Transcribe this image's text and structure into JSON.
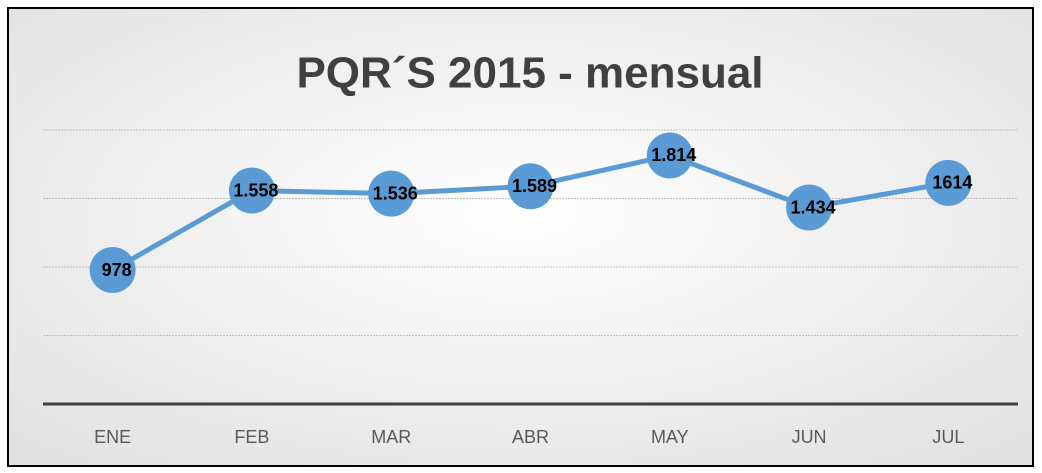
{
  "chart_data": {
    "type": "line",
    "title": "PQR´S  2015 - mensual",
    "categories": [
      "ENE",
      "FEB",
      "MAR",
      "ABR",
      "MAY",
      "JUN",
      "JUL"
    ],
    "series": [
      {
        "name": "PQR",
        "color": "#5b9bd5",
        "values": [
          978,
          1558,
          1536,
          1589,
          1814,
          1434,
          1614
        ],
        "value_labels": [
          "978",
          "1.558",
          "1.536",
          "1.589",
          "1.814",
          "1.434",
          "1614"
        ]
      }
    ],
    "ylim": [
      0,
      2000
    ],
    "yticks": [
      0,
      500,
      1000,
      1500,
      2000
    ],
    "grid": true
  }
}
